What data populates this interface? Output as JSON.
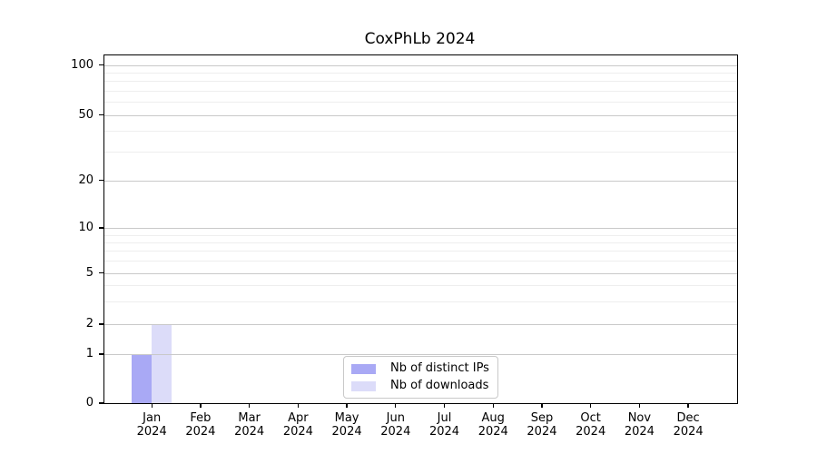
{
  "title": "CoxPhLb 2024",
  "chart_data": {
    "type": "bar",
    "title": "CoxPhLb 2024",
    "categories": [
      "Jan 2024",
      "Feb 2024",
      "Mar 2024",
      "Apr 2024",
      "May 2024",
      "Jun 2024",
      "Jul 2024",
      "Aug 2024",
      "Sep 2024",
      "Oct 2024",
      "Nov 2024",
      "Dec 2024"
    ],
    "series": [
      {
        "name": "Nb of distinct IPs",
        "color": "#a9a9f5",
        "values": [
          1,
          0,
          0,
          0,
          0,
          0,
          0,
          0,
          0,
          0,
          0,
          0
        ]
      },
      {
        "name": "Nb of downloads",
        "color": "#dcdcf9",
        "values": [
          2,
          0,
          0,
          0,
          0,
          0,
          0,
          0,
          0,
          0,
          0,
          0
        ]
      }
    ],
    "y_axis": {
      "ticks": [
        0,
        1,
        2,
        5,
        10,
        20,
        50,
        100
      ],
      "minor_ticks": [
        3,
        4,
        6,
        7,
        8,
        9,
        30,
        40,
        60,
        70,
        80,
        90
      ],
      "scale": "log-like",
      "range": [
        0,
        100
      ]
    },
    "x_axis": {
      "tick_count": 12
    },
    "grid": {
      "axis": "y",
      "which": "both",
      "major_color": "#c9c9c9",
      "minor_color": "#eeeeee"
    },
    "legend": {
      "position": "lower center"
    }
  }
}
